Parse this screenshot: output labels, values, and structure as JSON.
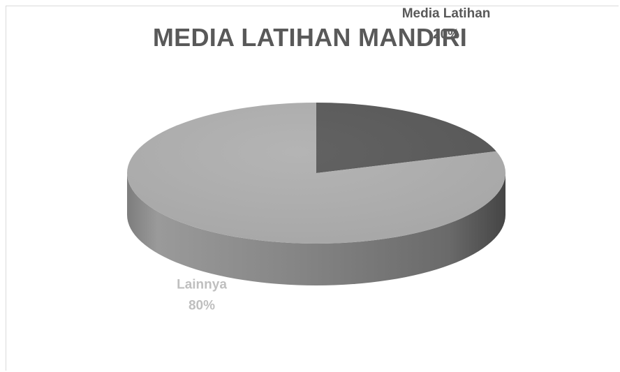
{
  "chart_data": {
    "type": "pie",
    "style": "3d",
    "title": "MEDIA LATIHAN MANDIRI",
    "slices": [
      {
        "label": "Media Latihan",
        "percent_text": "20%",
        "value": 20,
        "color": "#5a5a5a"
      },
      {
        "label": "Lainnya",
        "percent_text": "80%",
        "value": 80,
        "color": "#b0b0b0"
      }
    ],
    "label_colors": {
      "Media Latihan": "#595959",
      "Lainnya": "#bfbfbf"
    },
    "legend": "none"
  }
}
